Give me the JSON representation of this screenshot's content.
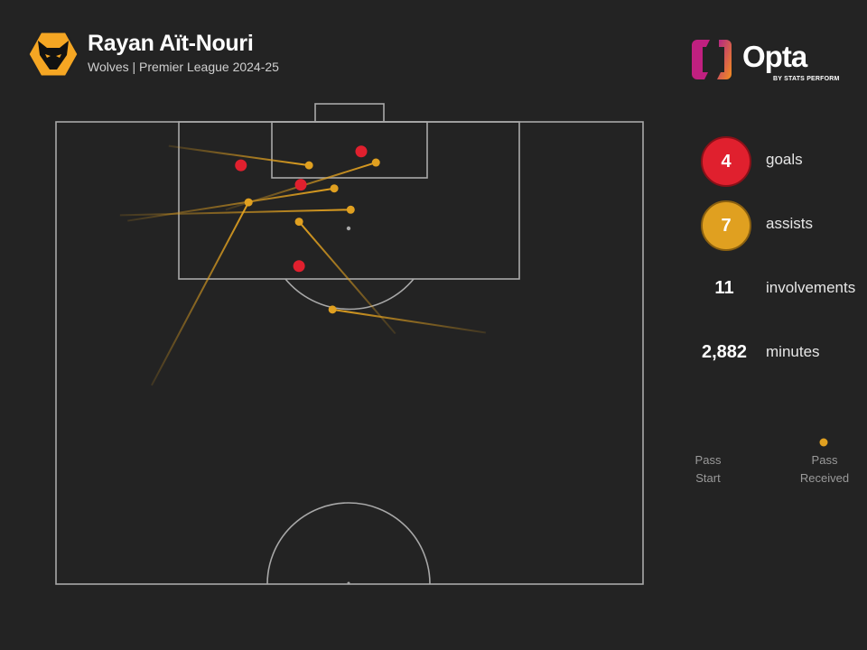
{
  "header": {
    "player": "Rayan Aït-Nouri",
    "subtitle": "Wolves | Premier League 2024-25",
    "crest_icon": "wolves-crest-icon"
  },
  "brand": {
    "name": "Opta",
    "tagline": "BY STATS PERFORM"
  },
  "colors": {
    "background": "#232323",
    "goal": "#e0202e",
    "assist": "#e0a020",
    "pitch_lines": "#a8a8a8"
  },
  "stats": [
    {
      "value": "4",
      "label": "goals",
      "color": "#e0202e"
    },
    {
      "value": "7",
      "label": "assists",
      "color": "#e0a020"
    },
    {
      "value": "11",
      "label": "involvements"
    },
    {
      "value": "2,882",
      "label": "minutes"
    }
  ],
  "legend": {
    "start": "Pass\nStart",
    "end": "Pass\nReceived"
  },
  "chart_data": {
    "type": "scatter",
    "coordinate_system": "Opta pitch (x 0-100 toward attacking goal, y 0-100 across width), attacking half shown",
    "goals": [
      {
        "x": 95.3,
        "y": 31.5
      },
      {
        "x": 96.8,
        "y": 52.0
      },
      {
        "x": 93.2,
        "y": 41.7
      },
      {
        "x": 84.4,
        "y": 41.4
      }
    ],
    "assists": [
      {
        "start": {
          "x": 97.4,
          "y": 19.2
        },
        "end": {
          "x": 95.3,
          "y": 43.1
        }
      },
      {
        "start": {
          "x": 90.5,
          "y": 28.9
        },
        "end": {
          "x": 95.6,
          "y": 54.5
        }
      },
      {
        "start": {
          "x": 89.3,
          "y": 12.2
        },
        "end": {
          "x": 92.8,
          "y": 47.4
        }
      },
      {
        "start": {
          "x": 89.9,
          "y": 10.9
        },
        "end": {
          "x": 90.5,
          "y": 50.2
        }
      },
      {
        "start": {
          "x": 71.5,
          "y": 16.3
        },
        "end": {
          "x": 91.3,
          "y": 32.8
        }
      },
      {
        "start": {
          "x": 77.1,
          "y": 57.8
        },
        "end": {
          "x": 89.2,
          "y": 41.4
        }
      },
      {
        "start": {
          "x": 77.2,
          "y": 73.2
        },
        "end": {
          "x": 79.7,
          "y": 47.1
        }
      }
    ]
  }
}
